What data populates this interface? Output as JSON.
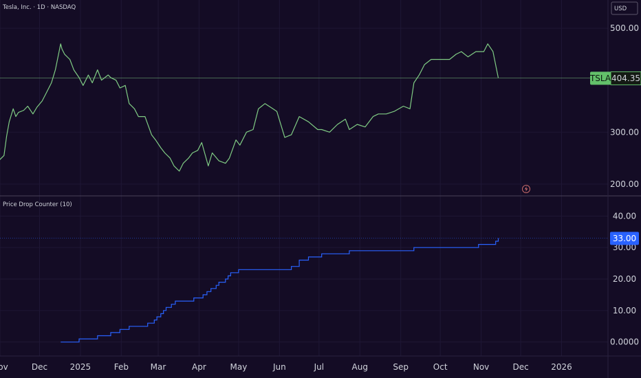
{
  "header": {
    "symbol_title": "Tesla, Inc. · 1D · NASDAQ",
    "currency": "USD",
    "indicator_title": "Price Drop Counter (10)"
  },
  "colors": {
    "background": "#140c25",
    "grid": "#1f1735",
    "price_line": "#80cc84",
    "price_label_bg": "#63c06a",
    "counter_line": "#2962ff",
    "counter_label_bg": "#2962ff",
    "axis_text": "#d1d4dc",
    "separator": "#4a4256"
  },
  "chart_data": [
    {
      "type": "line",
      "name": "price-panel",
      "series": [
        {
          "name": "TSLA",
          "last_value_label": "404.35",
          "x": [
            "2024-10-31",
            "2024-11-04",
            "2024-11-06",
            "2024-11-08",
            "2024-11-11",
            "2024-11-13",
            "2024-11-15",
            "2024-11-19",
            "2024-11-22",
            "2024-11-26",
            "2024-11-29",
            "2024-12-03",
            "2024-12-06",
            "2024-12-10",
            "2024-12-13",
            "2024-12-17",
            "2024-12-18",
            "2024-12-20",
            "2024-12-24",
            "2024-12-27",
            "2024-12-31",
            "2025-01-03",
            "2025-01-07",
            "2025-01-10",
            "2025-01-14",
            "2025-01-17",
            "2025-01-22",
            "2025-01-24",
            "2025-01-28",
            "2025-01-31",
            "2025-02-04",
            "2025-02-07",
            "2025-02-11",
            "2025-02-14",
            "2025-02-19",
            "2025-02-24",
            "2025-02-27",
            "2025-03-03",
            "2025-03-06",
            "2025-03-10",
            "2025-03-13",
            "2025-03-17",
            "2025-03-20",
            "2025-03-24",
            "2025-03-27",
            "2025-03-31",
            "2025-04-03",
            "2025-04-08",
            "2025-04-11",
            "2025-04-16",
            "2025-04-21",
            "2025-04-24",
            "2025-04-29",
            "2025-05-02",
            "2025-05-07",
            "2025-05-12",
            "2025-05-16",
            "2025-05-21",
            "2025-05-27",
            "2025-05-30",
            "2025-06-05",
            "2025-06-10",
            "2025-06-16",
            "2025-06-23",
            "2025-06-30",
            "2025-07-03",
            "2025-07-09",
            "2025-07-15",
            "2025-07-21",
            "2025-07-24",
            "2025-07-30",
            "2025-08-05",
            "2025-08-11",
            "2025-08-15",
            "2025-08-21",
            "2025-08-27",
            "2025-09-03",
            "2025-09-08",
            "2025-09-11",
            "2025-09-15",
            "2025-09-19",
            "2025-09-24",
            "2025-09-30",
            "2025-10-03",
            "2025-10-08",
            "2025-10-13",
            "2025-10-17",
            "2025-10-22",
            "2025-10-28",
            "2025-11-03",
            "2025-11-06",
            "2025-11-10",
            "2025-11-14"
          ],
          "values": [
            245,
            255,
            292,
            320,
            345,
            330,
            338,
            342,
            350,
            335,
            348,
            360,
            375,
            395,
            420,
            470,
            460,
            450,
            440,
            420,
            405,
            390,
            410,
            395,
            420,
            400,
            410,
            405,
            400,
            385,
            390,
            355,
            345,
            330,
            330,
            295,
            285,
            270,
            260,
            250,
            235,
            225,
            240,
            250,
            260,
            265,
            280,
            235,
            260,
            245,
            240,
            250,
            285,
            275,
            300,
            305,
            345,
            355,
            345,
            340,
            290,
            295,
            330,
            320,
            305,
            305,
            300,
            315,
            325,
            305,
            315,
            310,
            330,
            335,
            335,
            340,
            350,
            345,
            395,
            410,
            430,
            440,
            440,
            440,
            440,
            450,
            455,
            445,
            455,
            455,
            470,
            455,
            404.35
          ]
        }
      ],
      "y_ticks": [
        "500.00",
        "300.00",
        "200.00"
      ],
      "ylim": [
        180,
        520
      ],
      "grid": true
    },
    {
      "type": "line",
      "name": "counter-panel",
      "series": [
        {
          "name": "Price Drop Counter (10)",
          "last_value_label": "33.00",
          "x": [
            "2024-12-17",
            "2024-12-31",
            "2025-01-07",
            "2025-01-14",
            "2025-01-24",
            "2025-01-31",
            "2025-02-07",
            "2025-02-14",
            "2025-02-21",
            "2025-02-26",
            "2025-02-28",
            "2025-03-03",
            "2025-03-05",
            "2025-03-07",
            "2025-03-11",
            "2025-03-14",
            "2025-03-19",
            "2025-03-24",
            "2025-03-28",
            "2025-04-04",
            "2025-04-07",
            "2025-04-10",
            "2025-04-14",
            "2025-04-16",
            "2025-04-21",
            "2025-04-23",
            "2025-04-25",
            "2025-05-01",
            "2025-06-05",
            "2025-06-10",
            "2025-06-16",
            "2025-06-23",
            "2025-07-03",
            "2025-07-24",
            "2025-09-11",
            "2025-10-30",
            "2025-11-04",
            "2025-11-12",
            "2025-11-14"
          ],
          "values": [
            0,
            1,
            1,
            2,
            3,
            4,
            5,
            5,
            6,
            7,
            8,
            9,
            10,
            11,
            12,
            13,
            13,
            13,
            14,
            15,
            16,
            17,
            18,
            19,
            20,
            21,
            22,
            23,
            23,
            24,
            26,
            27,
            28,
            29,
            30,
            31,
            31,
            32,
            33
          ]
        }
      ],
      "y_ticks": [
        "40.00",
        "30.00",
        "20.00",
        "10.00",
        "0.0000"
      ],
      "ylim": [
        -4,
        44
      ],
      "grid": true
    }
  ],
  "x_axis_labels": [
    "Nov",
    "Dec",
    "2025",
    "Feb",
    "Mar",
    "Apr",
    "May",
    "Jun",
    "Jul",
    "Aug",
    "Sep",
    "Oct",
    "Nov",
    "Dec",
    "2026"
  ]
}
